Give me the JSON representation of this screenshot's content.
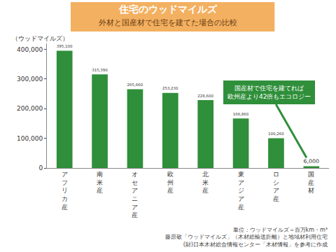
{
  "chart_data": {
    "type": "bar",
    "title": "住宅のウッドマイルズ",
    "subtitle": "外材と国産材で住宅を建てた場合の比較",
    "y_label": "（ウッドマイルズ）",
    "categories": [
      "アフリカ産",
      "南米産",
      "オセアニア産",
      "欧州産",
      "北米産",
      "東アジア産",
      "ロシア産",
      "国産材"
    ],
    "values": [
      395100,
      315390,
      265660,
      253230,
      228600,
      166860,
      100260,
      6000
    ],
    "value_labels": [
      "395,100",
      "315,390",
      "265,660",
      "253,230",
      "228,600",
      "166,860",
      "100,260",
      "6,000"
    ],
    "data_labels": true,
    "color": "#2f8f3a",
    "ylim": [
      0,
      420000
    ],
    "yticks": [
      0,
      {
        "value": 100000,
        "label": "100,000"
      },
      {
        "value": 200000,
        "label": "200,000"
      },
      {
        "value": 300000,
        "label": "300,000"
      },
      {
        "value": 400000,
        "label": "400,000"
      }
    ],
    "grid": false,
    "annotation": {
      "text": [
        "国産材で住宅を建てれば",
        "欧州産より42倍もエコロジー"
      ],
      "category": "国産材"
    },
    "notes": [
      "単位：ウッドマイルズ＝百万km・m³",
      "藤原敬「ウッドマイルズ」（木材総輸送距離）と地域材利用住宅",
      "(財)日本木材総合情報センター「木材情報」を参考に作成"
    ]
  }
}
